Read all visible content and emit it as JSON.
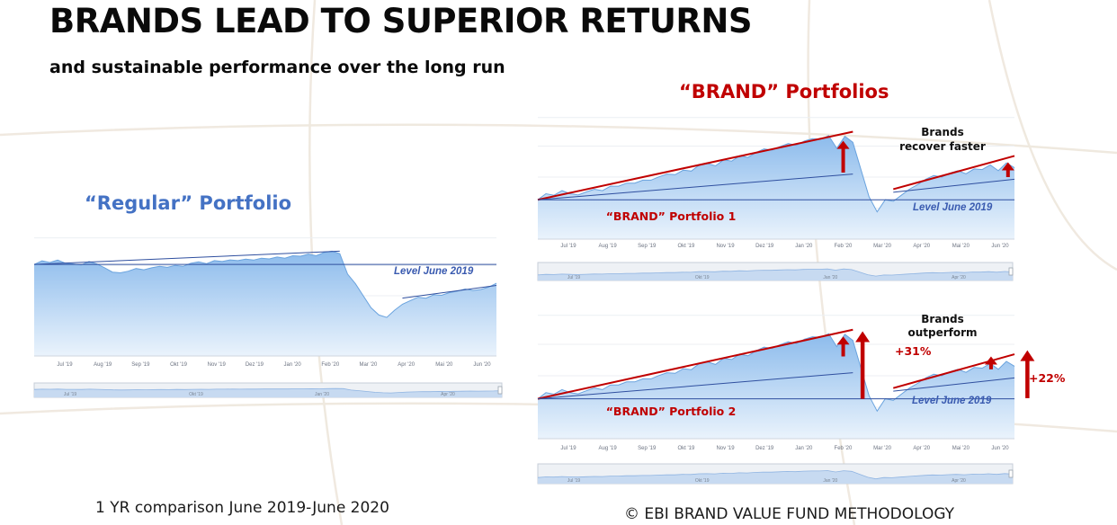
{
  "header": {
    "title": "BRANDS LEAD TO SUPERIOR RETURNS",
    "subtitle": "and sustainable performance over the long run"
  },
  "regular_heading": "“Regular” Portfolio",
  "brand_heading": "“BRAND” Portfolios",
  "footer": {
    "left": "1 YR comparison June 2019-June 2020",
    "right": "© EBI BRAND VALUE FUND METHODOLOGY"
  },
  "colors": {
    "area_fill_top": "#8cbbec",
    "area_fill_bottom": "#eaf3fc",
    "series_line": "#6aa3de",
    "trend_blue": "#2f4f9f",
    "trend_red": "#c00000",
    "level_line": "#2f4f9f",
    "arrow_red": "#c00000",
    "navigator_fill": "#c7daf1"
  },
  "chart_data": [
    {
      "id": "regular",
      "type": "area",
      "x_ticks": [
        "Jul '19",
        "Aug '19",
        "Sep '19",
        "Okt '19",
        "Nov '19",
        "Dez '19",
        "Jan '20",
        "Feb '20",
        "Mar '20",
        "Apr '20",
        "Mai '20",
        "Jun '20"
      ],
      "navigator_ticks": [
        "Jul '19",
        "Okt '19",
        "Jan '20",
        "Apr '20"
      ],
      "values": [
        100,
        101.5,
        100.8,
        101.8,
        100.5,
        100.2,
        99.8,
        101.2,
        100.2,
        98.6,
        96.8,
        96.5,
        97.2,
        98.3,
        97.8,
        98.6,
        99.2,
        98.8,
        99.6,
        99.2,
        100.5,
        101.1,
        100.3,
        101.6,
        101.2,
        101.9,
        101.6,
        102.2,
        101.8,
        102.6,
        102.3,
        103.1,
        102.6,
        103.6,
        103.4,
        104.3,
        103.6,
        105.0,
        105.5,
        104.5,
        96,
        92,
        87,
        82,
        79,
        78,
        81,
        83.5,
        85,
        86.4,
        86,
        87.4,
        87.2,
        88.3,
        88.9,
        89.8,
        89.2,
        89.6,
        90.6,
        92.2
      ],
      "level_label": "Level June 2019",
      "level_value": 100,
      "trend_lines": [
        {
          "from": [
            0,
            100
          ],
          "to": [
            39,
            105.5
          ],
          "color": "blue"
        },
        {
          "from": [
            47,
            86
          ],
          "to": [
            59,
            91.3
          ],
          "color": "blue"
        }
      ],
      "ylim": [
        62,
        112
      ]
    },
    {
      "id": "brand1",
      "type": "area",
      "label": "“BRAND” Portfolio 1",
      "level_label": "Level June 2019",
      "level_value": 100,
      "annotation": "Brands\nrecover faster",
      "x_ticks": [
        "Jul '19",
        "Aug '19",
        "Sep '19",
        "Okt '19",
        "Nov '19",
        "Dez '19",
        "Jan '20",
        "Feb '20",
        "Mar '20",
        "Apr '20",
        "Mai '20",
        "Jun '20"
      ],
      "navigator_ticks": [
        "Jul '19",
        "Okt '19",
        "Jan '20",
        "Apr '20"
      ],
      "values": [
        100,
        102,
        101.5,
        103,
        102,
        101.6,
        102.6,
        103.5,
        103,
        104.5,
        104.5,
        105.5,
        105.5,
        106.5,
        106.5,
        107.6,
        108.5,
        108.3,
        109.8,
        109.5,
        111.5,
        112,
        111.2,
        113.2,
        112.8,
        114.6,
        114,
        115.6,
        116.8,
        116.4,
        117.6,
        118.6,
        118,
        119.4,
        120.2,
        120,
        121.2,
        117,
        121,
        119,
        110,
        101,
        96,
        100,
        99.5,
        101.5,
        103.5,
        105,
        106.8,
        108,
        107.5,
        108.8,
        109.6,
        108.6,
        110.2,
        110,
        111.5,
        109.6,
        112.2,
        110.6
      ],
      "trend_lines": [
        {
          "from": [
            0,
            100
          ],
          "to": [
            39,
            122.5
          ],
          "color": "red"
        },
        {
          "from": [
            0,
            100
          ],
          "to": [
            39,
            108.5
          ],
          "color": "blue"
        },
        {
          "from": [
            44,
            103.5
          ],
          "to": [
            59,
            114.5
          ],
          "color": "red"
        },
        {
          "from": [
            44,
            102.5
          ],
          "to": [
            59,
            106.8
          ],
          "color": "blue"
        }
      ],
      "arrows": [
        {
          "x": 37.8,
          "from": 109,
          "to": 119.5,
          "size": "small"
        },
        {
          "x": 58.2,
          "from": 107.5,
          "to": 112.4,
          "size": "small"
        }
      ],
      "ylim": [
        87,
        128
      ]
    },
    {
      "id": "brand2",
      "type": "area",
      "label": "“BRAND” Portfolio 2",
      "level_label": "Level June 2019",
      "level_value": 100,
      "annotation": "Brands\noutperform",
      "callouts": [
        "+31%",
        "+22%"
      ],
      "x_ticks": [
        "Jul '19",
        "Aug '19",
        "Sep '19",
        "Okt '19",
        "Nov '19",
        "Dez '19",
        "Jan '20",
        "Feb '20",
        "Mar '20",
        "Apr '20",
        "Mai '20",
        "Jun '20"
      ],
      "navigator_ticks": [
        "Jul '19",
        "Okt '19",
        "Jan '20",
        "Apr '20"
      ],
      "values": [
        100,
        102,
        101.5,
        103,
        102,
        101.6,
        102.6,
        103.5,
        103,
        104.5,
        104.5,
        105.5,
        105.5,
        106.5,
        106.5,
        107.6,
        108.5,
        108.3,
        109.8,
        109.5,
        111.5,
        112,
        111.2,
        113.2,
        112.8,
        114.6,
        114,
        115.6,
        116.8,
        116.4,
        117.6,
        118.6,
        118,
        119.4,
        120.2,
        120,
        121.2,
        117,
        121,
        119,
        110,
        101,
        96,
        100,
        99.5,
        101.5,
        103.5,
        105,
        106.8,
        108,
        107.5,
        108.8,
        109.6,
        108.6,
        110.2,
        110,
        111.5,
        109.6,
        112.2,
        110.6
      ],
      "trend_lines": [
        {
          "from": [
            0,
            100
          ],
          "to": [
            39,
            122.5
          ],
          "color": "red"
        },
        {
          "from": [
            0,
            100
          ],
          "to": [
            39,
            108.5
          ],
          "color": "blue"
        },
        {
          "from": [
            44,
            103.5
          ],
          "to": [
            59,
            114.5
          ],
          "color": "red"
        },
        {
          "from": [
            44,
            102.5
          ],
          "to": [
            59,
            106.8
          ],
          "color": "blue"
        }
      ],
      "arrows": [
        {
          "x": 37.8,
          "from": 113.8,
          "to": 120.3,
          "size": "small"
        },
        {
          "x": 40.2,
          "from": 100,
          "to": 122,
          "size": "large"
        },
        {
          "x": 56.1,
          "from": 109.6,
          "to": 113.8,
          "size": "small"
        },
        {
          "x": 60.6,
          "from": 100.2,
          "to": 115.8,
          "size": "large"
        }
      ],
      "ylim": [
        87,
        128
      ]
    }
  ]
}
